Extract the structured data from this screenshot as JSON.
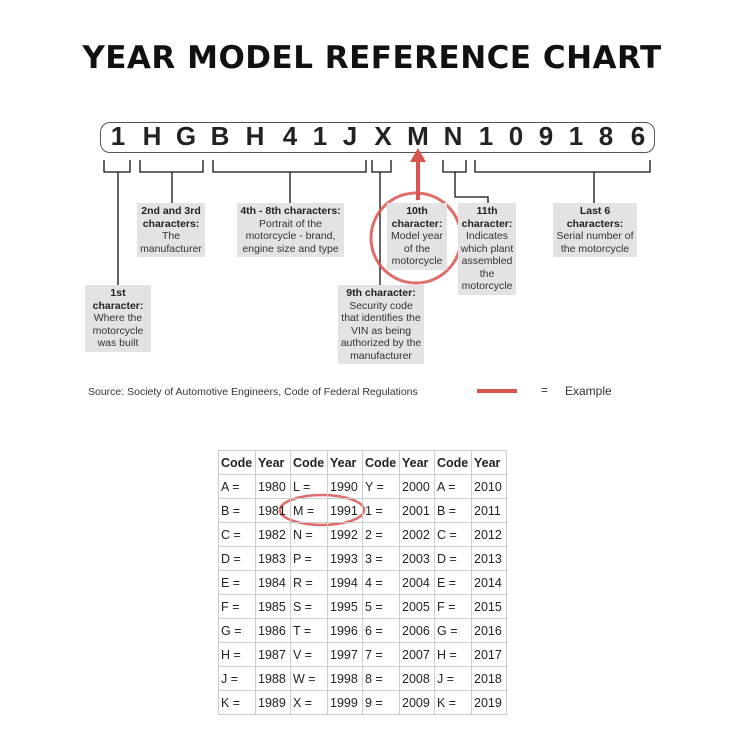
{
  "title": "YEAR MODEL REFERENCE CHART",
  "vin": [
    "1",
    "H",
    "G",
    "B",
    "H",
    "4",
    "1",
    "J",
    "X",
    "M",
    "N",
    "1",
    "0",
    "9",
    "1",
    "8",
    "6"
  ],
  "labels": {
    "first": {
      "heading": "1st character:",
      "text": "Where the motorcycle was built"
    },
    "second_third": {
      "heading": "2nd and 3rd characters:",
      "text": "The manufacturer"
    },
    "fourth_eighth": {
      "heading": "4th - 8th characters:",
      "text": "Portrait of the motorcycle - brand, engine size and type"
    },
    "ninth": {
      "heading": "9th character:",
      "text": "Security code that identifies the VIN as being authorized by the manufacturer"
    },
    "tenth": {
      "heading": "10th character:",
      "text": "Model year of the motorcycle"
    },
    "eleventh": {
      "heading": "11th character:",
      "text": "Indicates which plant assembled the motorcycle"
    },
    "last6": {
      "heading": "Last 6 characters:",
      "text": "Serial number of the motorcycle"
    }
  },
  "source": "Source:  Society of Automotive Engineers, Code of Federal Regulations",
  "legend": {
    "equals": "=",
    "label": "Example",
    "color": "#d9534f"
  },
  "accent_color": "#d9534f",
  "table": {
    "headers": [
      "Code",
      "Year",
      "Code",
      "Year",
      "Code",
      "Year",
      "Code",
      "Year"
    ],
    "rows": [
      [
        "A =",
        "1980",
        "L =",
        "1990",
        "Y =",
        "2000",
        "A =",
        "2010"
      ],
      [
        "B =",
        "1981",
        "M =",
        "1991",
        "1 =",
        "2001",
        "B =",
        "2011"
      ],
      [
        "C =",
        "1982",
        "N =",
        "1992",
        "2 =",
        "2002",
        "C =",
        "2012"
      ],
      [
        "D =",
        "1983",
        "P =",
        "1993",
        "3 =",
        "2003",
        "D =",
        "2013"
      ],
      [
        "E =",
        "1984",
        "R =",
        "1994",
        "4 =",
        "2004",
        "E =",
        "2014"
      ],
      [
        "F =",
        "1985",
        "S =",
        "1995",
        "5 =",
        "2005",
        "F =",
        "2015"
      ],
      [
        "G =",
        "1986",
        "T =",
        "1996",
        "6 =",
        "2006",
        "G =",
        "2016"
      ],
      [
        "H =",
        "1987",
        "V =",
        "1997",
        "7 =",
        "2007",
        "H =",
        "2017"
      ],
      [
        "J =",
        "1988",
        "W =",
        "1998",
        "8 =",
        "2008",
        "J =",
        "2018"
      ],
      [
        "K =",
        "1989",
        "X =",
        "1999",
        "9 =",
        "2009",
        "K =",
        "2019"
      ]
    ]
  }
}
